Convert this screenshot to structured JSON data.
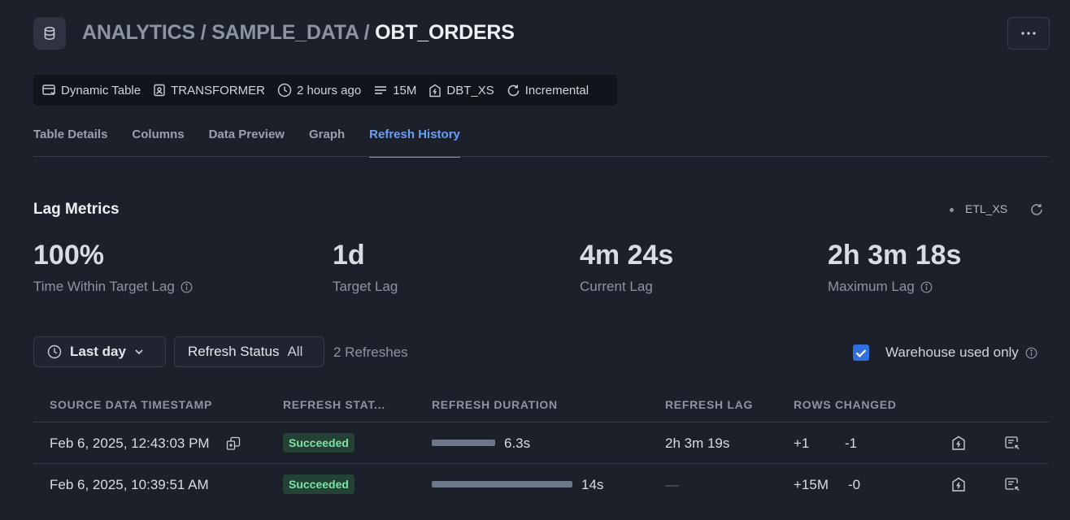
{
  "header": {
    "breadcrumb_prefix": "ANALYTICS / SAMPLE_DATA / ",
    "breadcrumb_current": "OBT_ORDERS",
    "icon": "database-icon",
    "more_icon": "more-horizontal-icon"
  },
  "meta": {
    "type": "Dynamic Table",
    "owner": "TRANSFORMER",
    "updated": "2 hours ago",
    "rows": "15M",
    "warehouse": "DBT_XS",
    "refresh_mode": "Incremental"
  },
  "tabs": [
    {
      "label": "Table Details"
    },
    {
      "label": "Columns"
    },
    {
      "label": "Data Preview"
    },
    {
      "label": "Graph"
    },
    {
      "label": "Refresh History",
      "active": true
    }
  ],
  "lag_metrics": {
    "title": "Lag Metrics",
    "warehouse": "ETL_XS",
    "metrics": [
      {
        "value": "100%",
        "label": "Time Within Target Lag",
        "info": true
      },
      {
        "value": "1d",
        "label": "Target Lag"
      },
      {
        "value": "4m 24s",
        "label": "Current Lag"
      },
      {
        "value": "2h 3m 18s",
        "label": "Maximum Lag",
        "info": true
      }
    ]
  },
  "filters": {
    "time_range": "Last day",
    "status_label": "Refresh Status",
    "status_value": "All",
    "refresh_count": "2 Refreshes",
    "warehouse_only_label": "Warehouse used only",
    "warehouse_only_checked": true
  },
  "table": {
    "columns": [
      "SOURCE DATA TIMESTAMP",
      "REFRESH STAT...",
      "REFRESH DURATION",
      "REFRESH LAG",
      "ROWS CHANGED"
    ],
    "rows": [
      {
        "timestamp": "Feb 6, 2025, 12:43:03 PM",
        "status": "Succeeded",
        "duration": "6.3s",
        "duration_fraction": 0.45,
        "lag": "2h 3m 19s",
        "rows_added": "+1",
        "rows_removed": "-1"
      },
      {
        "timestamp": "Feb 6, 2025, 10:39:51 AM",
        "status": "Succeeded",
        "duration": "14s",
        "duration_fraction": 1.0,
        "lag": "—",
        "rows_added": "+15M",
        "rows_removed": "-0"
      }
    ]
  },
  "colors": {
    "background": "#1b202a",
    "accent": "#6b9ef8",
    "success_bg": "#234235",
    "success_text": "#7ee2a8",
    "checkbox": "#2f6fde"
  }
}
